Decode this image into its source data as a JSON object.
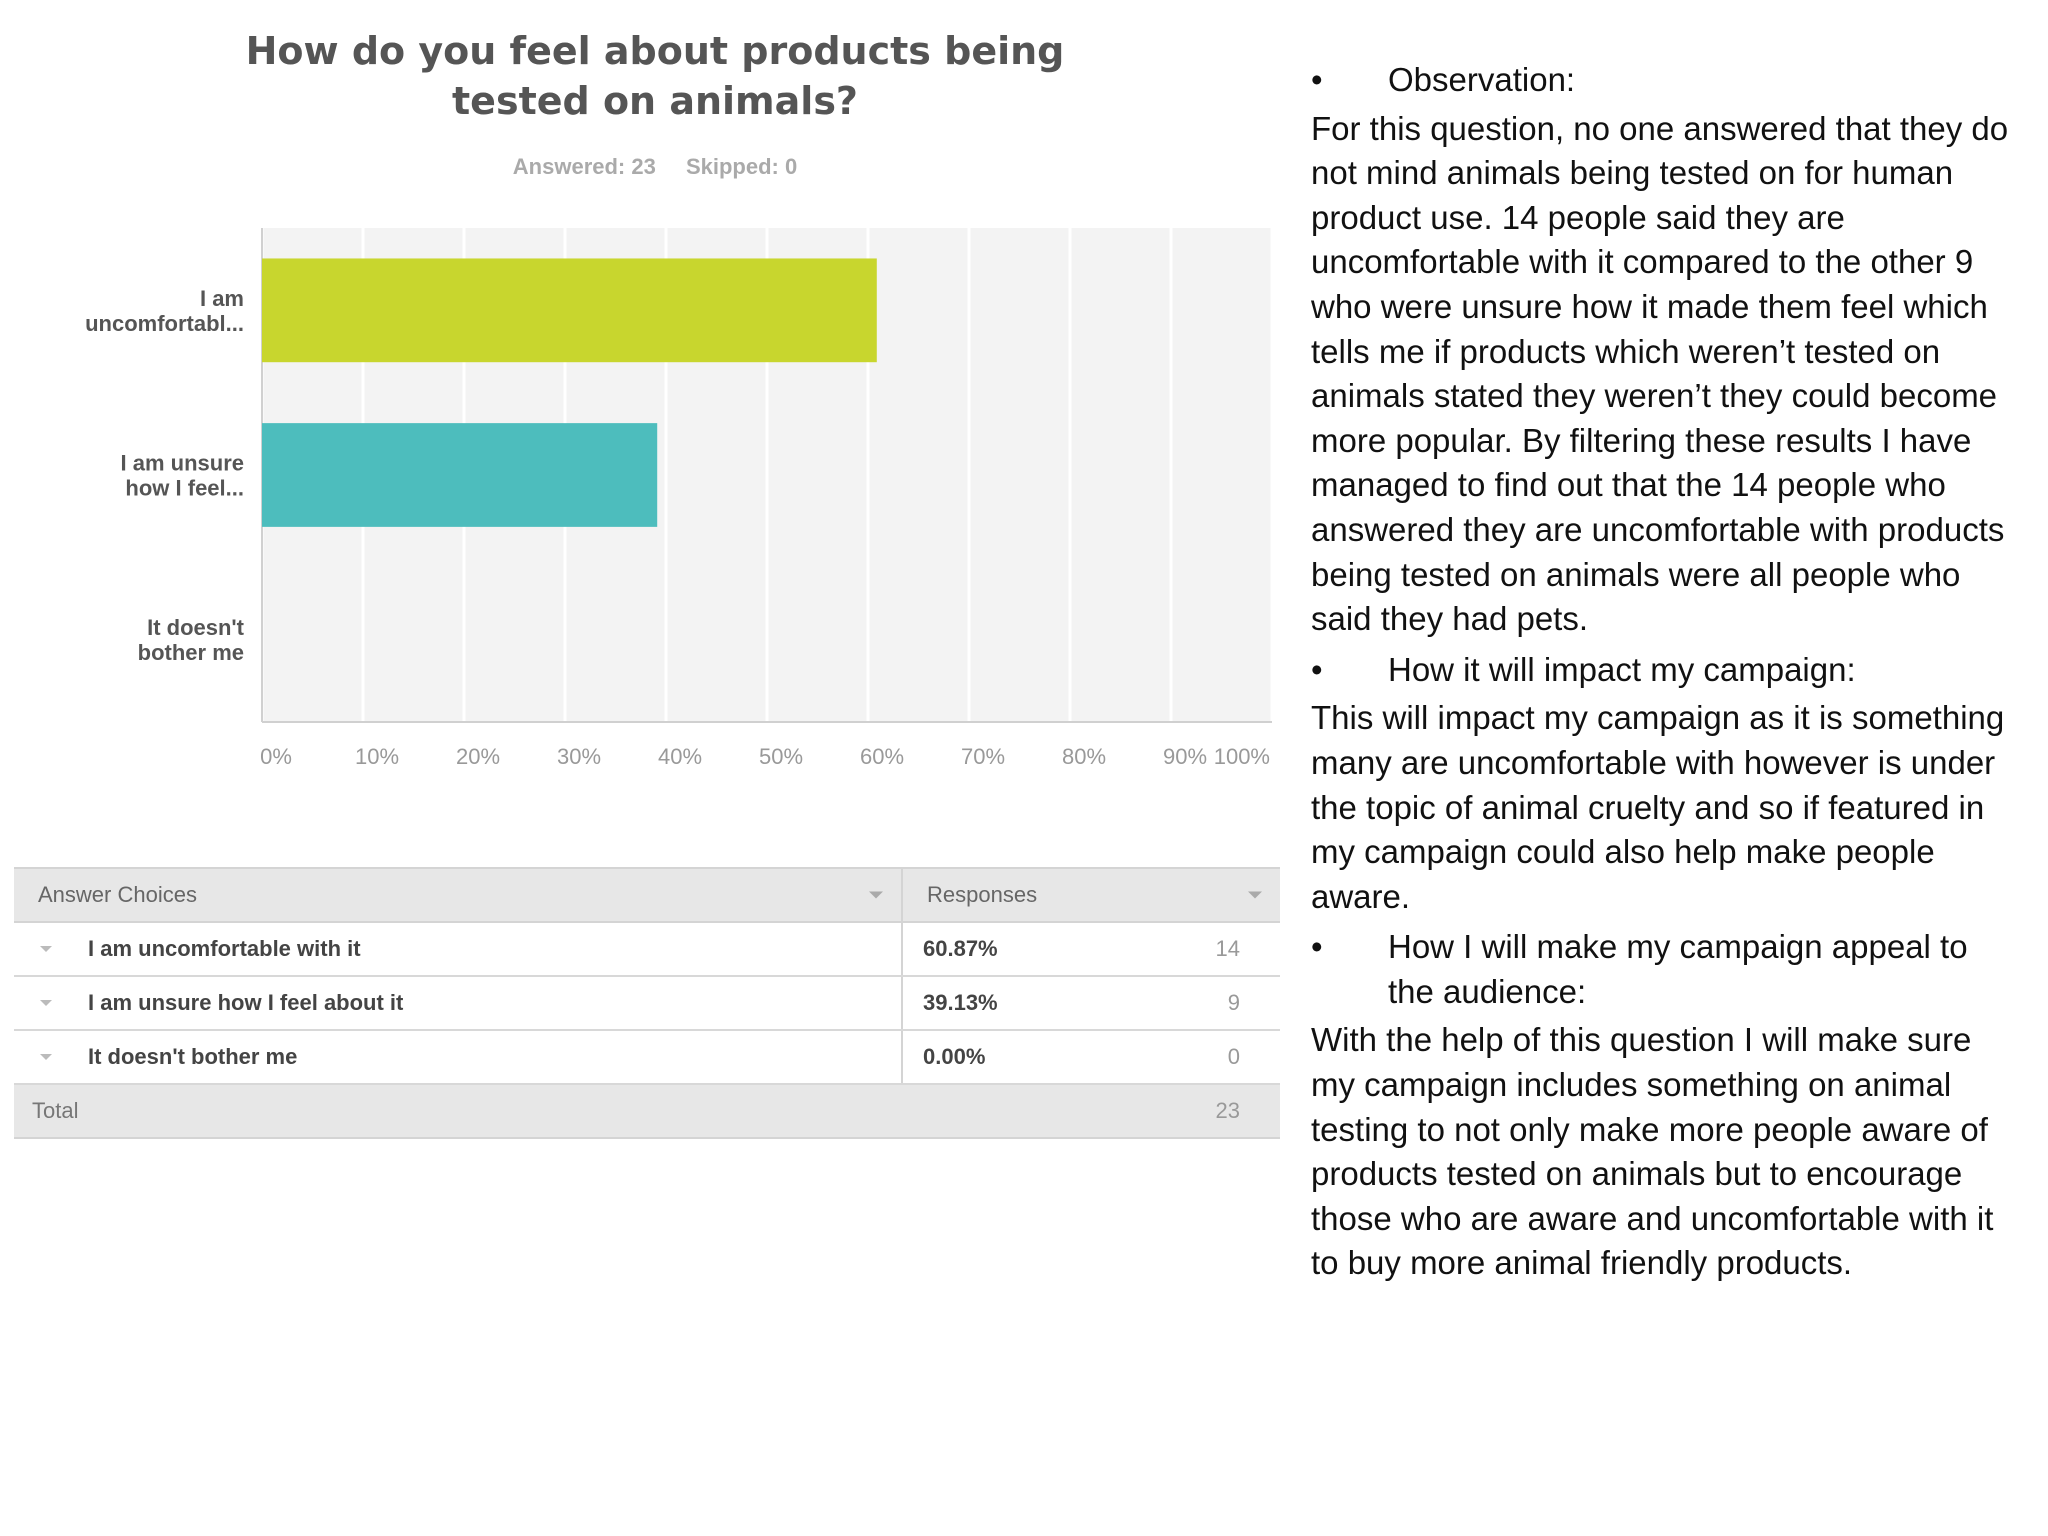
{
  "chart_data": {
    "type": "bar",
    "orientation": "horizontal",
    "title": "How do you feel about products being tested on animals?",
    "title_lines": [
      "How do you feel about products being",
      "tested on animals?"
    ],
    "meta": {
      "answered": "Answered: 23",
      "skipped": "Skipped: 0"
    },
    "categories": [
      [
        "I am",
        "uncomfortabl..."
      ],
      [
        "I am unsure",
        "how I feel..."
      ],
      [
        "It doesn't",
        "bother me"
      ]
    ],
    "values": [
      60.87,
      39.13,
      0
    ],
    "colors": [
      "#c8d62e",
      "#4dbdbd",
      "#cccccc"
    ],
    "x_ticks": [
      "0%",
      "10%",
      "20%",
      "30%",
      "40%",
      "50%",
      "60%",
      "70%",
      "80%",
      "90%",
      "100%"
    ],
    "xlim": [
      0,
      100
    ],
    "grid": true,
    "legend": "none"
  },
  "table": {
    "headers": {
      "choices": "Answer Choices",
      "responses": "Responses"
    },
    "rows": [
      {
        "choice": "I am uncomfortable with it",
        "percent": "60.87%",
        "count": "14"
      },
      {
        "choice": "I am unsure how I feel about it",
        "percent": "39.13%",
        "count": "9"
      },
      {
        "choice": "It doesn't bother me",
        "percent": "0.00%",
        "count": "0"
      }
    ],
    "total_label": "Total",
    "total_count": "23"
  },
  "notes": {
    "bullet_char": "•",
    "observation_heading": "Observation:",
    "observation_text": "For this question, no one answered that they do not mind animals being tested on for human product use. 14 people said they are uncomfortable with it compared to the other 9 who were unsure how it made them feel which tells me if products which weren’t tested on animals stated they weren’t they could become more popular. By filtering these results I have managed to find out that the 14 people who answered they are uncomfortable with products being tested on animals were all people who said they had pets.",
    "impact_heading": "How it will impact my campaign:",
    "impact_text": "This will impact my campaign as it is something many are uncomfortable with however is under the topic of animal cruelty and so if featured in my campaign could also help make people aware.",
    "appeal_heading": "How I will make my campaign appeal to the audience:",
    "appeal_text": "With the help  of this question I will make sure my campaign includes something on animal testing to not only make more people aware of products tested on animals but to encourage those who are aware and uncomfortable with it to buy more animal friendly products."
  }
}
